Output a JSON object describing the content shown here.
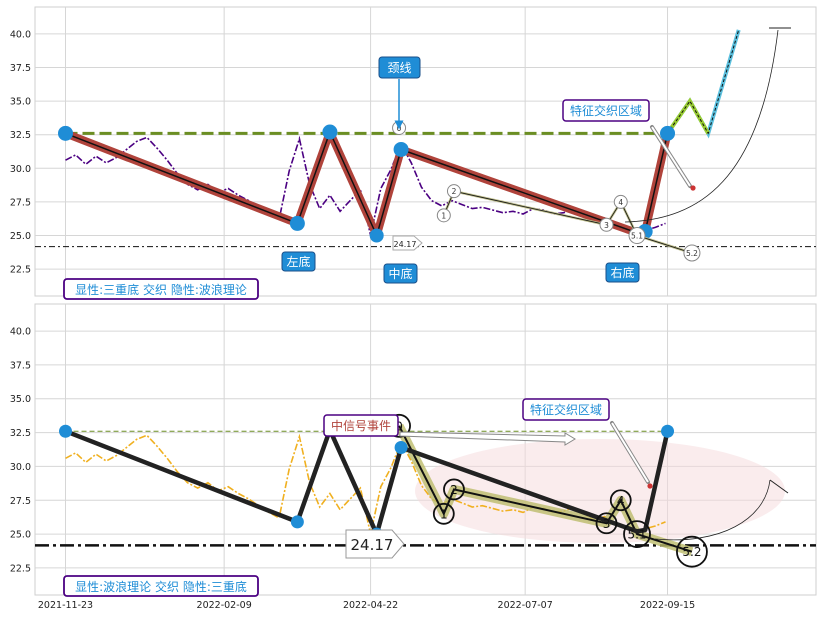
{
  "chart_data": [
    {
      "type": "line",
      "panel": "top",
      "ylim": [
        20.5,
        42
      ],
      "xlim": [
        "2021-11-08",
        "2022-11-27"
      ],
      "yticks": [
        "22.5",
        "25.0",
        "27.5",
        "30.0",
        "32.5",
        "35.0",
        "37.5",
        "40.0"
      ],
      "neckline": 32.6,
      "support_line": 24.17,
      "price_series": {
        "x": [
          "2021-11-23",
          "2021-11-28",
          "2021-12-03",
          "2021-12-08",
          "2021-12-13",
          "2021-12-18",
          "2021-12-23",
          "2021-12-28",
          "2022-01-02",
          "2022-01-07",
          "2022-01-12",
          "2022-01-17",
          "2022-01-22",
          "2022-01-27",
          "2022-02-01",
          "2022-02-06",
          "2022-02-11",
          "2022-02-16",
          "2022-02-21",
          "2022-02-26",
          "2022-03-03",
          "2022-03-08",
          "2022-03-13",
          "2022-03-18",
          "2022-03-23",
          "2022-03-28",
          "2022-04-02",
          "2022-04-07",
          "2022-04-12",
          "2022-04-17",
          "2022-04-22",
          "2022-04-27",
          "2022-05-02",
          "2022-05-07",
          "2022-05-12",
          "2022-05-17",
          "2022-05-22",
          "2022-05-27",
          "2022-06-01",
          "2022-06-06",
          "2022-06-11",
          "2022-06-16",
          "2022-06-21",
          "2022-06-26",
          "2022-07-01",
          "2022-07-06",
          "2022-07-11",
          "2022-07-16",
          "2022-07-21",
          "2022-07-26",
          "2022-07-31",
          "2022-08-05",
          "2022-08-10",
          "2022-08-15",
          "2022-08-20",
          "2022-08-25",
          "2022-08-30",
          "2022-09-04",
          "2022-09-09",
          "2022-09-14"
        ],
        "y": [
          30.6,
          31.0,
          30.3,
          30.9,
          30.4,
          30.8,
          31.4,
          32.0,
          32.3,
          31.5,
          30.6,
          29.6,
          28.8,
          28.4,
          28.8,
          28.2,
          28.5,
          28.0,
          27.6,
          27.1,
          26.6,
          26.2,
          29.8,
          32.2,
          28.8,
          27.0,
          28.0,
          26.8,
          27.6,
          28.4,
          25.0,
          28.5,
          29.9,
          31.8,
          30.4,
          28.6,
          27.6,
          27.2,
          27.6,
          27.3,
          27.0,
          27.1,
          26.9,
          26.7,
          26.8,
          26.6,
          27.0,
          26.9,
          26.6,
          26.7,
          27.0,
          26.5,
          26.0,
          26.3,
          25.8,
          25.5,
          25.2,
          25.4,
          25.6,
          25.9
        ]
      },
      "pattern_line": {
        "x": [
          "2021-11-23",
          "2022-03-17",
          "2022-04-02",
          "2022-04-25",
          "2022-05-07",
          "2022-08-31",
          "2022-09-04",
          "2022-09-15"
        ],
        "y": [
          32.6,
          25.9,
          32.7,
          25.0,
          31.4,
          25.2,
          25.3,
          32.6
        ]
      },
      "wave_points": [
        {
          "label": "0",
          "x": "2022-05-06",
          "y": 33.0
        },
        {
          "label": "1",
          "x": "2022-05-28",
          "y": 26.5
        },
        {
          "label": "2",
          "x": "2022-06-02",
          "y": 28.3
        },
        {
          "label": "3",
          "x": "2022-08-16",
          "y": 25.8
        },
        {
          "label": "4",
          "x": "2022-08-23",
          "y": 27.5
        },
        {
          "label": "5.1",
          "x": "2022-08-31",
          "y": 25.0
        },
        {
          "label": "5.2",
          "x": "2022-09-27",
          "y": 23.7
        }
      ],
      "projection_line": {
        "x": [
          "2022-09-15",
          "2022-09-26",
          "2022-10-05",
          "2022-10-20"
        ],
        "y": [
          32.6,
          35.0,
          32.6,
          40.3
        ]
      },
      "annotations": {
        "neckline": "颈线",
        "left": "左底",
        "middle": "中底",
        "right": "右底",
        "zone": "特征交织区域",
        "value": "24.17",
        "caption": "显性:三重底 交织 隐性:波浪理论"
      }
    },
    {
      "type": "line",
      "panel": "bottom",
      "ylim": [
        20.5,
        42
      ],
      "xlim": [
        "2021-11-08",
        "2022-11-27"
      ],
      "yticks": [
        "22.5",
        "25.0",
        "27.5",
        "30.0",
        "32.5",
        "35.0",
        "37.5",
        "40.0"
      ],
      "xticks": [
        "2021-11-23",
        "2022-02-09",
        "2022-04-22",
        "2022-07-07",
        "2022-09-15"
      ],
      "neckline": 32.6,
      "support_line": 24.17,
      "annotations": {
        "signal": "中信号事件",
        "zone": "特征交织区域",
        "value": "24.17",
        "caption": "显性:波浪理论 交织 隐性:三重底"
      }
    }
  ],
  "colors": {
    "price_top": "#4b0082",
    "price_bottom": "#f0b020",
    "pattern_top": "#b0433b",
    "pattern_bottom": "#222222",
    "neck": "#6b8e23",
    "blue_node": "#1f8dd6",
    "label_bg": "#1f8dd6",
    "zone_text": "#1f8dd6",
    "caption_border": "#4b0082",
    "signal_text": "#b0433b",
    "projection": "#5bc0de"
  }
}
